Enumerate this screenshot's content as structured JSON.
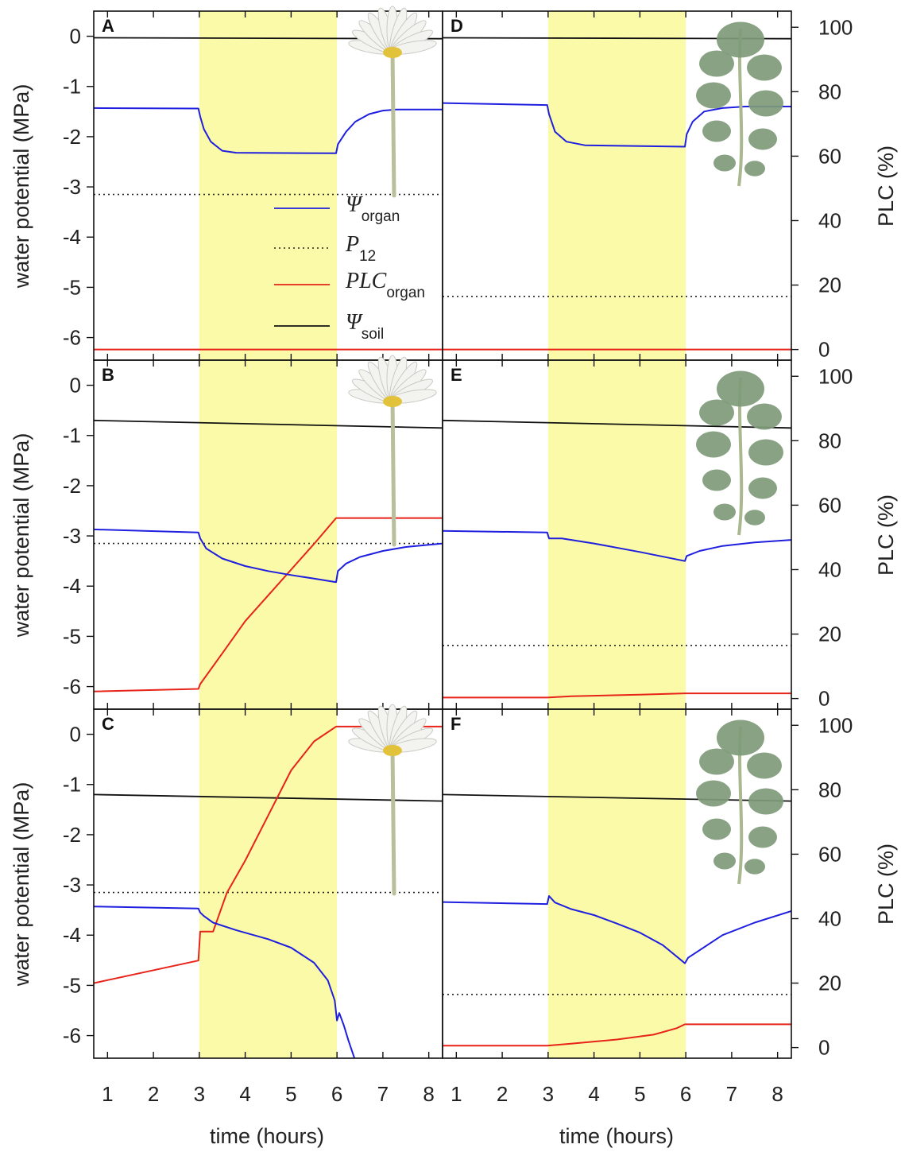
{
  "chart_data": {
    "type": "line",
    "x_axis": {
      "label": "time (hours)",
      "range": [
        0.7,
        8.3
      ],
      "ticks": [
        1,
        2,
        3,
        4,
        5,
        6,
        7,
        8
      ]
    },
    "left_axis": {
      "label": "water potential (MPa)",
      "range": [
        -6.45,
        0.5
      ],
      "ticks": [
        0,
        -1,
        -2,
        -3,
        -4,
        -5,
        -6
      ]
    },
    "right_axis": {
      "label": "PLC (%)",
      "range": [
        -3.3,
        105
      ],
      "ticks": [
        0,
        20,
        40,
        60,
        80,
        100
      ]
    },
    "highlight_interval": [
      3,
      6
    ],
    "legend": [
      {
        "key": "psi_organ",
        "symbol": "Ψ",
        "sub": "organ",
        "color": "#1f1fe0",
        "style": "solid"
      },
      {
        "key": "p12",
        "symbol": "P",
        "sub": "12",
        "color": "#222222",
        "style": "dotted"
      },
      {
        "key": "plc_organ",
        "symbol": "PLC",
        "sub": "organ",
        "color": "#e8231a",
        "style": "solid"
      },
      {
        "key": "psi_soil",
        "symbol": "Ψ",
        "sub": "soil",
        "color": "#111111",
        "style": "solid"
      }
    ],
    "colors": {
      "psi_organ": "#1f1fe0",
      "plc_organ": "#e8231a",
      "psi_soil": "#111111",
      "p12": "#222222",
      "highlight": "#fafaa8"
    },
    "panels": [
      {
        "letter": "A",
        "organ": "flower",
        "psi_soil": [
          [
            0.7,
            -0.03
          ],
          [
            8.3,
            -0.05
          ]
        ],
        "p12": -3.15,
        "psi_organ": [
          [
            0.7,
            -1.43
          ],
          [
            2.98,
            -1.44
          ],
          [
            3.02,
            -1.6
          ],
          [
            3.1,
            -1.85
          ],
          [
            3.25,
            -2.1
          ],
          [
            3.5,
            -2.28
          ],
          [
            3.8,
            -2.32
          ],
          [
            5.98,
            -2.33
          ],
          [
            6.02,
            -2.15
          ],
          [
            6.2,
            -1.9
          ],
          [
            6.4,
            -1.7
          ],
          [
            6.7,
            -1.55
          ],
          [
            7.0,
            -1.48
          ],
          [
            7.3,
            -1.46
          ],
          [
            8.3,
            -1.46
          ]
        ],
        "plc": [
          [
            0.7,
            0
          ],
          [
            8.3,
            0
          ]
        ]
      },
      {
        "letter": "B",
        "organ": "flower",
        "psi_soil": [
          [
            0.7,
            -0.7
          ],
          [
            8.3,
            -0.85
          ]
        ],
        "p12": -3.15,
        "psi_organ": [
          [
            0.7,
            -2.87
          ],
          [
            2.98,
            -2.93
          ],
          [
            3.02,
            -3.05
          ],
          [
            3.15,
            -3.25
          ],
          [
            3.5,
            -3.45
          ],
          [
            4.0,
            -3.6
          ],
          [
            4.5,
            -3.7
          ],
          [
            5.0,
            -3.78
          ],
          [
            5.5,
            -3.85
          ],
          [
            5.98,
            -3.92
          ],
          [
            6.02,
            -3.7
          ],
          [
            6.2,
            -3.55
          ],
          [
            6.5,
            -3.42
          ],
          [
            7.0,
            -3.3
          ],
          [
            7.5,
            -3.22
          ],
          [
            8.3,
            -3.15
          ]
        ],
        "plc": [
          [
            0.7,
            2.2
          ],
          [
            2.98,
            3.0
          ],
          [
            3.02,
            4.5
          ],
          [
            3.5,
            14
          ],
          [
            4.0,
            24
          ],
          [
            4.5,
            32
          ],
          [
            5.0,
            40
          ],
          [
            5.5,
            48
          ],
          [
            5.98,
            56
          ],
          [
            8.3,
            56
          ]
        ]
      },
      {
        "letter": "C",
        "organ": "flower",
        "psi_soil": [
          [
            0.7,
            -1.2
          ],
          [
            8.3,
            -1.33
          ]
        ],
        "p12": -3.15,
        "psi_organ": [
          [
            0.7,
            -3.43
          ],
          [
            2.98,
            -3.47
          ],
          [
            3.02,
            -3.55
          ],
          [
            3.1,
            -3.62
          ],
          [
            3.3,
            -3.75
          ],
          [
            3.8,
            -3.9
          ],
          [
            4.5,
            -4.08
          ],
          [
            5.0,
            -4.25
          ],
          [
            5.5,
            -4.55
          ],
          [
            5.8,
            -4.9
          ],
          [
            5.95,
            -5.3
          ],
          [
            6.0,
            -5.7
          ],
          [
            6.05,
            -5.55
          ],
          [
            6.15,
            -5.8
          ],
          [
            6.25,
            -6.1
          ],
          [
            6.38,
            -6.45
          ]
        ],
        "plc": [
          [
            0.7,
            20
          ],
          [
            2.98,
            27
          ],
          [
            3.02,
            36
          ],
          [
            3.3,
            36
          ],
          [
            3.6,
            48
          ],
          [
            4.0,
            58
          ],
          [
            4.5,
            72
          ],
          [
            5.0,
            86
          ],
          [
            5.5,
            95
          ],
          [
            5.98,
            99.6
          ],
          [
            8.3,
            99.6
          ]
        ]
      },
      {
        "letter": "D",
        "organ": "leaf",
        "psi_soil": [
          [
            0.7,
            -0.03
          ],
          [
            8.3,
            -0.05
          ]
        ],
        "p12": -5.18,
        "psi_organ": [
          [
            0.7,
            -1.33
          ],
          [
            2.98,
            -1.37
          ],
          [
            3.02,
            -1.55
          ],
          [
            3.15,
            -1.9
          ],
          [
            3.4,
            -2.1
          ],
          [
            3.8,
            -2.17
          ],
          [
            5.98,
            -2.2
          ],
          [
            6.02,
            -1.95
          ],
          [
            6.15,
            -1.7
          ],
          [
            6.4,
            -1.5
          ],
          [
            6.8,
            -1.43
          ],
          [
            7.3,
            -1.4
          ],
          [
            8.3,
            -1.4
          ]
        ],
        "plc": [
          [
            0.7,
            0
          ],
          [
            8.3,
            0
          ]
        ]
      },
      {
        "letter": "E",
        "organ": "leaf",
        "psi_soil": [
          [
            0.7,
            -0.7
          ],
          [
            8.3,
            -0.85
          ]
        ],
        "p12": -5.18,
        "psi_organ": [
          [
            0.7,
            -2.9
          ],
          [
            2.98,
            -2.93
          ],
          [
            3.02,
            -3.05
          ],
          [
            3.3,
            -3.05
          ],
          [
            4.0,
            -3.15
          ],
          [
            5.0,
            -3.32
          ],
          [
            5.98,
            -3.5
          ],
          [
            6.02,
            -3.4
          ],
          [
            6.3,
            -3.3
          ],
          [
            6.8,
            -3.2
          ],
          [
            7.5,
            -3.13
          ],
          [
            8.3,
            -3.08
          ]
        ],
        "plc": [
          [
            0.7,
            0.3
          ],
          [
            2.98,
            0.3
          ],
          [
            3.5,
            0.7
          ],
          [
            5.0,
            1.2
          ],
          [
            5.98,
            1.6
          ],
          [
            8.3,
            1.6
          ]
        ]
      },
      {
        "letter": "F",
        "organ": "leaf",
        "psi_soil": [
          [
            0.7,
            -1.2
          ],
          [
            8.3,
            -1.33
          ]
        ],
        "p12": -5.18,
        "psi_organ": [
          [
            0.7,
            -3.34
          ],
          [
            2.98,
            -3.38
          ],
          [
            3.02,
            -3.22
          ],
          [
            3.15,
            -3.35
          ],
          [
            3.5,
            -3.48
          ],
          [
            4.0,
            -3.6
          ],
          [
            4.5,
            -3.77
          ],
          [
            5.0,
            -3.95
          ],
          [
            5.5,
            -4.2
          ],
          [
            5.9,
            -4.5
          ],
          [
            5.98,
            -4.56
          ],
          [
            6.05,
            -4.45
          ],
          [
            6.3,
            -4.3
          ],
          [
            6.8,
            -4.0
          ],
          [
            7.5,
            -3.75
          ],
          [
            8.3,
            -3.52
          ]
        ],
        "plc": [
          [
            0.7,
            0.6
          ],
          [
            2.98,
            0.6
          ],
          [
            3.5,
            1.2
          ],
          [
            4.5,
            2.5
          ],
          [
            5.3,
            4.0
          ],
          [
            5.8,
            6.0
          ],
          [
            5.98,
            7.2
          ],
          [
            8.3,
            7.2
          ]
        ]
      }
    ]
  }
}
